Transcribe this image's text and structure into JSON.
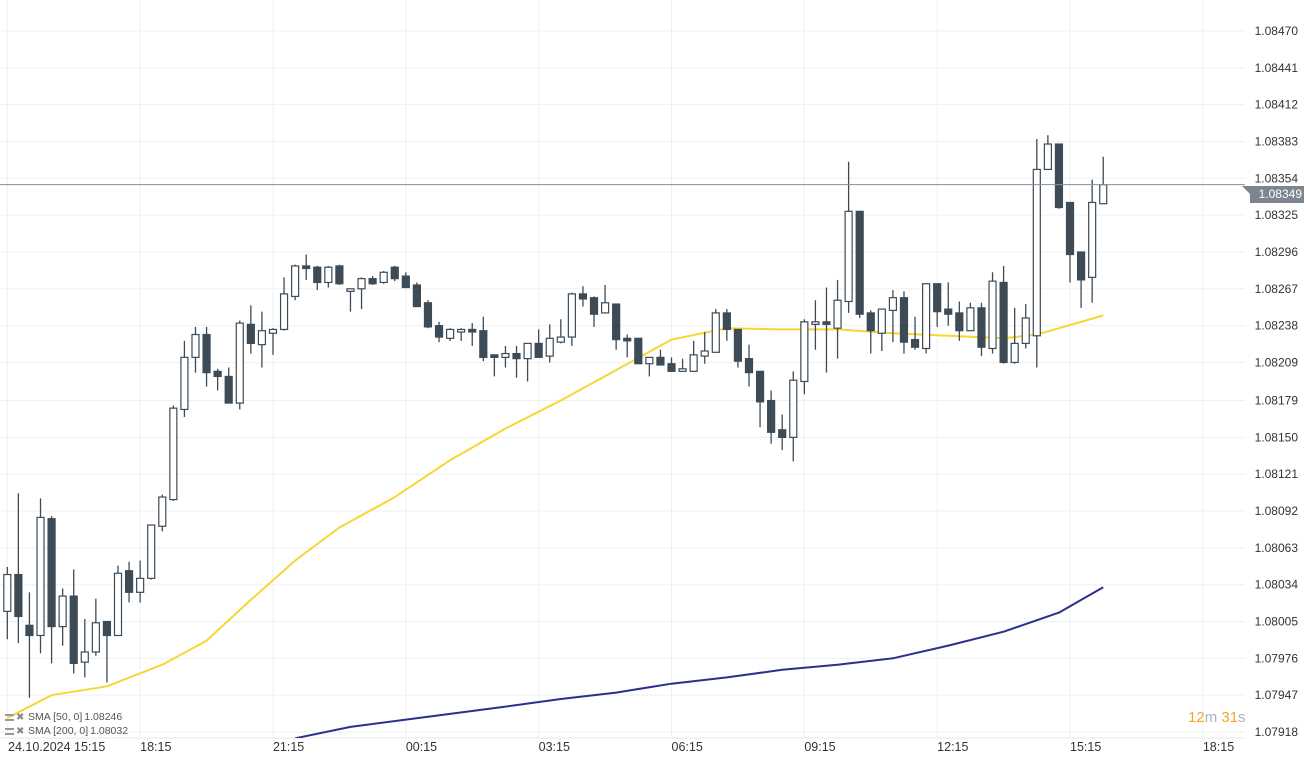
{
  "chart_data": {
    "type": "candlestick",
    "ylim": [
      1.07918,
      1.0847
    ],
    "y_ticks": [
      "1.08470",
      "1.08441",
      "1.08412",
      "1.08383",
      "1.08354",
      "1.08325",
      "1.08296",
      "1.08267",
      "1.08238",
      "1.08209",
      "1.08179",
      "1.08150",
      "1.08121",
      "1.08092",
      "1.08063",
      "1.08034",
      "1.08005",
      "1.07976",
      "1.07947",
      "1.07918"
    ],
    "x_ticks": [
      {
        "t": "24.10 15:15",
        "label": "24.10.2024  15:15"
      },
      {
        "t": "24.10 18:15",
        "label": "18:15"
      },
      {
        "t": "24.10 21:15",
        "label": "21:15"
      },
      {
        "t": "25.10 00:15",
        "label": "00:15"
      },
      {
        "t": "25.10 03:15",
        "label": "03:15"
      },
      {
        "t": "25.10 06:15",
        "label": "06:15"
      },
      {
        "t": "25.10 09:15",
        "label": "09:15"
      },
      {
        "t": "25.10 12:15",
        "label": "12:15"
      },
      {
        "t": "25.10 15:15",
        "label": "15:15"
      },
      {
        "t": "25.10 18:15",
        "label": "18:15"
      }
    ],
    "interval": "15m",
    "grid": true,
    "current_price": "1.08349",
    "countdown": {
      "min": "12",
      "min_unit": "m",
      "sec": "31",
      "sec_unit": "s"
    },
    "colors": {
      "bull": "#ffffff",
      "bear": "#3d4b57",
      "outline": "#3d4b57",
      "sma50": "#f7d634",
      "sma200": "#2c2f8c",
      "price_line": "#8a8f94",
      "price_tag": "#7d868e",
      "countdown": "#f5a623"
    },
    "candles": [
      [
        "24.10 15:15",
        1.08013,
        1.08048,
        1.07991,
        1.08042
      ],
      [
        "24.10 15:30",
        1.08042,
        1.08106,
        1.07988,
        1.08009
      ],
      [
        "24.10 15:45",
        1.08002,
        1.08028,
        1.07945,
        1.07994
      ],
      [
        "24.10 16:00",
        1.07994,
        1.08102,
        1.0798,
        1.08087
      ],
      [
        "24.10 16:15",
        1.08086,
        1.08088,
        1.07972,
        1.08001
      ],
      [
        "24.10 16:30",
        1.08001,
        1.08031,
        1.07986,
        1.08025
      ],
      [
        "24.10 16:45",
        1.08025,
        1.08046,
        1.07964,
        1.07972
      ],
      [
        "24.10 17:00",
        1.07973,
        1.08007,
        1.07961,
        1.07981
      ],
      [
        "24.10 17:15",
        1.07981,
        1.08023,
        1.07978,
        1.08004
      ],
      [
        "24.10 17:30",
        1.08005,
        1.08005,
        1.07957,
        1.07994
      ],
      [
        "24.10 17:45",
        1.07994,
        1.08049,
        1.07994,
        1.08043
      ],
      [
        "24.10 18:00",
        1.08045,
        1.08052,
        1.0802,
        1.08028
      ],
      [
        "24.10 18:15",
        1.08028,
        1.08053,
        1.0802,
        1.08039
      ],
      [
        "24.10 18:30",
        1.08039,
        1.08081,
        1.08038,
        1.08081
      ],
      [
        "24.10 18:45",
        1.0808,
        1.08105,
        1.08076,
        1.08103
      ],
      [
        "24.10 19:00",
        1.08101,
        1.08175,
        1.081,
        1.08173
      ],
      [
        "24.10 19:15",
        1.08172,
        1.08226,
        1.08166,
        1.08213
      ],
      [
        "24.10 19:30",
        1.08213,
        1.08237,
        1.08201,
        1.08231
      ],
      [
        "24.10 19:45",
        1.08231,
        1.08237,
        1.0819,
        1.08201
      ],
      [
        "24.10 20:00",
        1.08202,
        1.08204,
        1.08187,
        1.08198
      ],
      [
        "24.10 20:15",
        1.08198,
        1.08205,
        1.08177,
        1.08177
      ],
      [
        "24.10 20:30",
        1.08177,
        1.08242,
        1.08172,
        1.0824
      ],
      [
        "24.10 20:45",
        1.08239,
        1.08254,
        1.08216,
        1.08224
      ],
      [
        "24.10 21:00",
        1.08223,
        1.08249,
        1.08205,
        1.08234
      ],
      [
        "24.10 21:15",
        1.08232,
        1.08236,
        1.08215,
        1.08235
      ],
      [
        "24.10 21:30",
        1.08235,
        1.08276,
        1.08234,
        1.08263
      ],
      [
        "24.10 21:45",
        1.08261,
        1.08286,
        1.08258,
        1.08285
      ],
      [
        "24.10 22:00",
        1.08285,
        1.08294,
        1.08274,
        1.08283
      ],
      [
        "24.10 22:15",
        1.08284,
        1.08285,
        1.08266,
        1.08272
      ],
      [
        "24.10 22:30",
        1.08272,
        1.08285,
        1.08268,
        1.08284
      ],
      [
        "24.10 22:45",
        1.08285,
        1.08286,
        1.0827,
        1.08271
      ],
      [
        "24.10 23:00",
        1.08265,
        1.08267,
        1.08249,
        1.08267
      ],
      [
        "24.10 23:15",
        1.08267,
        1.08276,
        1.08251,
        1.08275
      ],
      [
        "24.10 23:30",
        1.08275,
        1.08277,
        1.0827,
        1.08271
      ],
      [
        "24.10 23:45",
        1.08272,
        1.08281,
        1.08271,
        1.0828
      ],
      [
        "25.10 00:00",
        1.08284,
        1.08285,
        1.08273,
        1.08275
      ],
      [
        "25.10 00:15",
        1.08277,
        1.0828,
        1.08268,
        1.08268
      ],
      [
        "25.10 00:30",
        1.0827,
        1.08272,
        1.08253,
        1.08253
      ],
      [
        "25.10 00:45",
        1.08256,
        1.08258,
        1.08236,
        1.08237
      ],
      [
        "25.10 01:00",
        1.08238,
        1.08241,
        1.08225,
        1.08229
      ],
      [
        "25.10 01:15",
        1.08228,
        1.08236,
        1.08226,
        1.08235
      ],
      [
        "25.10 01:30",
        1.08233,
        1.08236,
        1.08226,
        1.08235
      ],
      [
        "25.10 01:45",
        1.08235,
        1.0824,
        1.08222,
        1.08233
      ],
      [
        "25.10 02:00",
        1.08234,
        1.08245,
        1.0821,
        1.08213
      ],
      [
        "25.10 02:15",
        1.08215,
        1.08215,
        1.08198,
        1.08213
      ],
      [
        "25.10 02:30",
        1.08213,
        1.08222,
        1.08205,
        1.08216
      ],
      [
        "25.10 02:45",
        1.08216,
        1.08222,
        1.08197,
        1.08212
      ],
      [
        "25.10 03:00",
        1.08212,
        1.08224,
        1.08194,
        1.08224
      ],
      [
        "25.10 03:15",
        1.08224,
        1.08235,
        1.08213,
        1.08213
      ],
      [
        "25.10 03:30",
        1.08214,
        1.08239,
        1.08209,
        1.08228
      ],
      [
        "25.10 03:45",
        1.08225,
        1.08243,
        1.08224,
        1.08229
      ],
      [
        "25.10 04:00",
        1.08229,
        1.08264,
        1.08222,
        1.08263
      ],
      [
        "25.10 04:15",
        1.08263,
        1.08269,
        1.08253,
        1.08259
      ],
      [
        "25.10 04:30",
        1.0826,
        1.08261,
        1.08237,
        1.08247
      ],
      [
        "25.10 04:45",
        1.08248,
        1.0827,
        1.08248,
        1.08256
      ],
      [
        "25.10 05:00",
        1.08255,
        1.08255,
        1.08219,
        1.08227
      ],
      [
        "25.10 05:15",
        1.08228,
        1.08231,
        1.08213,
        1.08226
      ],
      [
        "25.10 05:30",
        1.08228,
        1.08228,
        1.08208,
        1.08208
      ],
      [
        "25.10 05:45",
        1.08208,
        1.08213,
        1.08198,
        1.08213
      ],
      [
        "25.10 06:00",
        1.08213,
        1.08219,
        1.08207,
        1.08207
      ],
      [
        "25.10 06:15",
        1.08208,
        1.08213,
        1.08202,
        1.08202
      ],
      [
        "25.10 06:30",
        1.08202,
        1.08212,
        1.08202,
        1.08204
      ],
      [
        "25.10 06:45",
        1.08202,
        1.08226,
        1.08202,
        1.08215
      ],
      [
        "25.10 07:00",
        1.08214,
        1.08233,
        1.08208,
        1.08218
      ],
      [
        "25.10 07:15",
        1.08217,
        1.08251,
        1.08217,
        1.08248
      ],
      [
        "25.10 07:30",
        1.08248,
        1.08251,
        1.08226,
        1.08235
      ],
      [
        "25.10 07:45",
        1.08235,
        1.08235,
        1.08205,
        1.0821
      ],
      [
        "25.10 08:00",
        1.08212,
        1.08223,
        1.0819,
        1.08201
      ],
      [
        "25.10 08:15",
        1.08202,
        1.08202,
        1.08158,
        1.08178
      ],
      [
        "25.10 08:30",
        1.08179,
        1.08187,
        1.08145,
        1.08154
      ],
      [
        "25.10 08:45",
        1.08156,
        1.08168,
        1.0814,
        1.0815
      ],
      [
        "25.10 09:00",
        1.0815,
        1.08202,
        1.08131,
        1.08195
      ],
      [
        "25.10 09:15",
        1.08194,
        1.08243,
        1.08184,
        1.08241
      ],
      [
        "25.10 09:30",
        1.08239,
        1.08258,
        1.08219,
        1.08241
      ],
      [
        "25.10 09:45",
        1.08241,
        1.08268,
        1.08201,
        1.08239
      ],
      [
        "25.10 10:00",
        1.08236,
        1.08274,
        1.08212,
        1.08258
      ],
      [
        "25.10 10:15",
        1.08257,
        1.08367,
        1.08248,
        1.08328
      ],
      [
        "25.10 10:30",
        1.08328,
        1.08328,
        1.08244,
        1.08247
      ],
      [
        "25.10 10:45",
        1.08248,
        1.0825,
        1.08216,
        1.08234
      ],
      [
        "25.10 11:00",
        1.08232,
        1.08251,
        1.08218,
        1.08251
      ],
      [
        "25.10 11:15",
        1.0825,
        1.08266,
        1.08225,
        1.0826
      ],
      [
        "25.10 11:30",
        1.0826,
        1.08265,
        1.08216,
        1.08225
      ],
      [
        "25.10 11:45",
        1.08227,
        1.08245,
        1.08219,
        1.08221
      ],
      [
        "25.10 12:00",
        1.0822,
        1.08271,
        1.08216,
        1.08271
      ],
      [
        "25.10 12:15",
        1.08271,
        1.08271,
        1.08237,
        1.08249
      ],
      [
        "25.10 12:30",
        1.08251,
        1.08272,
        1.08238,
        1.08247
      ],
      [
        "25.10 12:45",
        1.08248,
        1.08257,
        1.08226,
        1.08234
      ],
      [
        "25.10 13:00",
        1.08234,
        1.08256,
        1.08234,
        1.08252
      ],
      [
        "25.10 13:15",
        1.08252,
        1.08256,
        1.08214,
        1.08221
      ],
      [
        "25.10 13:30",
        1.0822,
        1.0828,
        1.08216,
        1.08273
      ],
      [
        "25.10 13:45",
        1.08272,
        1.08285,
        1.08208,
        1.08209
      ],
      [
        "25.10 14:00",
        1.08209,
        1.08252,
        1.08208,
        1.08224
      ],
      [
        "25.10 14:15",
        1.08224,
        1.08255,
        1.0822,
        1.08244
      ],
      [
        "25.10 14:30",
        1.0823,
        1.08385,
        1.08205,
        1.08361
      ],
      [
        "25.10 14:45",
        1.08361,
        1.08388,
        1.08361,
        1.08381
      ],
      [
        "25.10 15:00",
        1.08381,
        1.08381,
        1.0833,
        1.08331
      ],
      [
        "25.10 15:15",
        1.08335,
        1.08335,
        1.08272,
        1.08294
      ],
      [
        "25.10 15:30",
        1.08296,
        1.08296,
        1.08252,
        1.08274
      ],
      [
        "25.10 15:45",
        1.08276,
        1.08353,
        1.08256,
        1.08335
      ],
      [
        "25.10 16:00",
        1.08334,
        1.08371,
        1.08334,
        1.08349
      ]
    ],
    "series": [
      {
        "name": "SMA [50,  0]",
        "value": "1.08246",
        "color": "#f7d634",
        "points": [
          [
            "24.10 15:15",
            1.07929
          ],
          [
            "24.10 16:15",
            1.07947
          ],
          [
            "24.10 17:30",
            1.07954
          ],
          [
            "24.10 18:45",
            1.07971
          ],
          [
            "24.10 19:45",
            1.0799
          ],
          [
            "24.10 20:45",
            1.08022
          ],
          [
            "24.10 21:45",
            1.08053
          ],
          [
            "24.10 22:45",
            1.08079
          ],
          [
            "25.10 00:00",
            1.08103
          ],
          [
            "25.10 01:15",
            1.08132
          ],
          [
            "25.10 02:30",
            1.08157
          ],
          [
            "25.10 03:45",
            1.08179
          ],
          [
            "25.10 05:00",
            1.08203
          ],
          [
            "25.10 06:15",
            1.08227
          ],
          [
            "25.10 07:30",
            1.08236
          ],
          [
            "25.10 08:45",
            1.08235
          ],
          [
            "25.10 10:00",
            1.08235
          ],
          [
            "25.10 11:15",
            1.08232
          ],
          [
            "25.10 12:30",
            1.0823
          ],
          [
            "25.10 13:45",
            1.08228
          ],
          [
            "25.10 14:30",
            1.08231
          ],
          [
            "25.10 15:00",
            1.08236
          ],
          [
            "25.10 16:00",
            1.08246
          ]
        ]
      },
      {
        "name": "SMA [200,  0]",
        "value": "1.08032",
        "color": "#2c2f8c",
        "points": [
          [
            "24.10 21:45",
            1.07913
          ],
          [
            "24.10 23:00",
            1.07922
          ],
          [
            "25.10 00:45",
            1.0793
          ],
          [
            "25.10 02:30",
            1.07938
          ],
          [
            "25.10 03:45",
            1.07944
          ],
          [
            "25.10 05:00",
            1.07949
          ],
          [
            "25.10 06:15",
            1.07956
          ],
          [
            "25.10 07:30",
            1.07961
          ],
          [
            "25.10 08:45",
            1.07967
          ],
          [
            "25.10 10:00",
            1.07971
          ],
          [
            "25.10 11:15",
            1.07976
          ],
          [
            "25.10 12:30",
            1.07986
          ],
          [
            "25.10 13:45",
            1.07997
          ],
          [
            "25.10 15:00",
            1.08012
          ],
          [
            "25.10 16:00",
            1.08032
          ]
        ]
      }
    ]
  }
}
